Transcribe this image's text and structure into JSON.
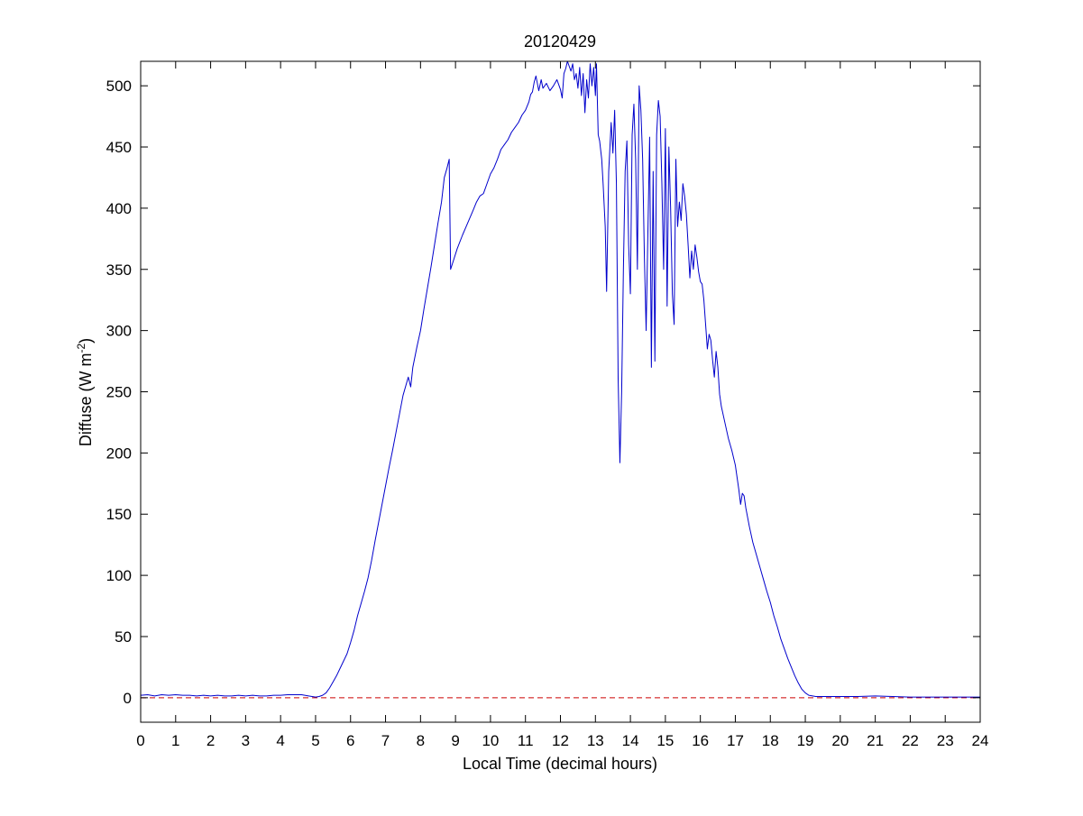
{
  "chart_data": {
    "type": "line",
    "title": "20120429",
    "xlabel": "Local Time (decimal hours)",
    "ylabel": "Diffuse (W m",
    "ylabel_superscript": "-2",
    "ylabel_suffix": ")",
    "xlim": [
      0,
      24
    ],
    "ylim": [
      -20,
      520
    ],
    "xticks": [
      0,
      1,
      2,
      3,
      4,
      5,
      6,
      7,
      8,
      9,
      10,
      11,
      12,
      13,
      14,
      15,
      16,
      17,
      18,
      19,
      20,
      21,
      22,
      23,
      24
    ],
    "yticks": [
      0,
      50,
      100,
      150,
      200,
      250,
      300,
      350,
      400,
      450,
      500
    ],
    "grid": false,
    "colors": {
      "series": "#0000cc",
      "reference": "#cc0000"
    },
    "series": [
      {
        "points": [
          [
            0,
            2
          ],
          [
            0.2,
            2.5
          ],
          [
            0.4,
            1.5
          ],
          [
            0.6,
            2.5
          ],
          [
            0.8,
            2
          ],
          [
            1,
            2.5
          ],
          [
            1.2,
            2
          ],
          [
            1.4,
            2
          ],
          [
            1.6,
            1.5
          ],
          [
            1.8,
            2
          ],
          [
            2,
            1.5
          ],
          [
            2.2,
            2
          ],
          [
            2.4,
            1.5
          ],
          [
            2.6,
            1.5
          ],
          [
            2.8,
            2
          ],
          [
            3,
            1.5
          ],
          [
            3.2,
            2
          ],
          [
            3.4,
            1.5
          ],
          [
            3.6,
            1.5
          ],
          [
            3.8,
            2
          ],
          [
            4,
            2
          ],
          [
            4.2,
            2.5
          ],
          [
            4.4,
            2.5
          ],
          [
            4.6,
            2.5
          ],
          [
            4.8,
            1.5
          ],
          [
            5,
            0.5
          ],
          [
            5.1,
            1
          ],
          [
            5.2,
            2
          ],
          [
            5.3,
            4
          ],
          [
            5.4,
            8
          ],
          [
            5.5,
            13
          ],
          [
            5.6,
            18
          ],
          [
            5.7,
            24
          ],
          [
            5.8,
            30
          ],
          [
            5.9,
            36
          ],
          [
            6,
            45
          ],
          [
            6.1,
            55
          ],
          [
            6.2,
            67
          ],
          [
            6.3,
            77
          ],
          [
            6.4,
            87
          ],
          [
            6.5,
            98
          ],
          [
            6.6,
            112
          ],
          [
            6.7,
            128
          ],
          [
            6.8,
            143
          ],
          [
            6.9,
            158
          ],
          [
            7,
            173
          ],
          [
            7.1,
            188
          ],
          [
            7.2,
            202
          ],
          [
            7.3,
            217
          ],
          [
            7.4,
            232
          ],
          [
            7.5,
            247
          ],
          [
            7.6,
            257
          ],
          [
            7.65,
            262
          ],
          [
            7.72,
            254
          ],
          [
            7.78,
            270
          ],
          [
            7.9,
            287
          ],
          [
            8,
            300
          ],
          [
            8.1,
            318
          ],
          [
            8.2,
            335
          ],
          [
            8.3,
            352
          ],
          [
            8.4,
            370
          ],
          [
            8.5,
            388
          ],
          [
            8.6,
            405
          ],
          [
            8.68,
            425
          ],
          [
            8.75,
            432
          ],
          [
            8.82,
            440
          ],
          [
            8.86,
            350
          ],
          [
            8.95,
            358
          ],
          [
            9.05,
            367
          ],
          [
            9.2,
            378
          ],
          [
            9.35,
            388
          ],
          [
            9.5,
            398
          ],
          [
            9.6,
            405
          ],
          [
            9.7,
            410
          ],
          [
            9.8,
            412
          ],
          [
            9.9,
            420
          ],
          [
            10,
            428
          ],
          [
            10.1,
            433
          ],
          [
            10.2,
            440
          ],
          [
            10.3,
            448
          ],
          [
            10.4,
            452
          ],
          [
            10.5,
            456
          ],
          [
            10.6,
            462
          ],
          [
            10.7,
            466
          ],
          [
            10.8,
            470
          ],
          [
            10.9,
            476
          ],
          [
            11,
            480
          ],
          [
            11.1,
            487
          ],
          [
            11.15,
            493
          ],
          [
            11.2,
            495
          ],
          [
            11.25,
            503
          ],
          [
            11.3,
            508
          ],
          [
            11.38,
            496
          ],
          [
            11.45,
            505
          ],
          [
            11.5,
            498
          ],
          [
            11.6,
            502
          ],
          [
            11.7,
            496
          ],
          [
            11.8,
            500
          ],
          [
            11.9,
            505
          ],
          [
            12,
            497
          ],
          [
            12.05,
            490
          ],
          [
            12.1,
            510
          ],
          [
            12.15,
            514
          ],
          [
            12.2,
            520
          ],
          [
            12.3,
            512
          ],
          [
            12.35,
            518
          ],
          [
            12.4,
            505
          ],
          [
            12.45,
            510
          ],
          [
            12.5,
            498
          ],
          [
            12.55,
            515
          ],
          [
            12.6,
            492
          ],
          [
            12.65,
            510
          ],
          [
            12.7,
            478
          ],
          [
            12.75,
            505
          ],
          [
            12.8,
            490
          ],
          [
            12.85,
            518
          ],
          [
            12.9,
            500
          ],
          [
            12.95,
            515
          ],
          [
            13,
            492
          ],
          [
            13.03,
            518
          ],
          [
            13.08,
            460
          ],
          [
            13.12,
            455
          ],
          [
            13.18,
            440
          ],
          [
            13.22,
            420
          ],
          [
            13.28,
            385
          ],
          [
            13.32,
            332
          ],
          [
            13.38,
            430
          ],
          [
            13.45,
            470
          ],
          [
            13.5,
            445
          ],
          [
            13.55,
            480
          ],
          [
            13.6,
            420
          ],
          [
            13.65,
            260
          ],
          [
            13.7,
            192
          ],
          [
            13.75,
            250
          ],
          [
            13.8,
            350
          ],
          [
            13.85,
            430
          ],
          [
            13.9,
            455
          ],
          [
            13.95,
            370
          ],
          [
            14,
            330
          ],
          [
            14.05,
            460
          ],
          [
            14.1,
            485
          ],
          [
            14.15,
            440
          ],
          [
            14.2,
            350
          ],
          [
            14.25,
            500
          ],
          [
            14.3,
            480
          ],
          [
            14.35,
            440
          ],
          [
            14.4,
            360
          ],
          [
            14.45,
            300
          ],
          [
            14.5,
            380
          ],
          [
            14.55,
            458
          ],
          [
            14.6,
            270
          ],
          [
            14.65,
            430
          ],
          [
            14.7,
            275
          ],
          [
            14.75,
            460
          ],
          [
            14.8,
            488
          ],
          [
            14.85,
            475
          ],
          [
            14.9,
            420
          ],
          [
            14.95,
            350
          ],
          [
            15,
            465
          ],
          [
            15.05,
            320
          ],
          [
            15.1,
            450
          ],
          [
            15.15,
            400
          ],
          [
            15.2,
            330
          ],
          [
            15.25,
            305
          ],
          [
            15.3,
            440
          ],
          [
            15.35,
            385
          ],
          [
            15.4,
            405
          ],
          [
            15.45,
            390
          ],
          [
            15.5,
            420
          ],
          [
            15.55,
            410
          ],
          [
            15.6,
            395
          ],
          [
            15.65,
            370
          ],
          [
            15.7,
            343
          ],
          [
            15.75,
            365
          ],
          [
            15.8,
            350
          ],
          [
            15.85,
            370
          ],
          [
            15.9,
            360
          ],
          [
            15.95,
            348
          ],
          [
            16,
            340
          ],
          [
            16.05,
            338
          ],
          [
            16.1,
            325
          ],
          [
            16.15,
            305
          ],
          [
            16.2,
            285
          ],
          [
            16.25,
            297
          ],
          [
            16.3,
            292
          ],
          [
            16.35,
            276
          ],
          [
            16.4,
            262
          ],
          [
            16.45,
            283
          ],
          [
            16.5,
            270
          ],
          [
            16.55,
            248
          ],
          [
            16.6,
            238
          ],
          [
            16.7,
            225
          ],
          [
            16.8,
            212
          ],
          [
            16.9,
            202
          ],
          [
            17,
            190
          ],
          [
            17.05,
            180
          ],
          [
            17.1,
            170
          ],
          [
            17.15,
            158
          ],
          [
            17.2,
            167
          ],
          [
            17.25,
            165
          ],
          [
            17.3,
            155
          ],
          [
            17.4,
            140
          ],
          [
            17.5,
            127
          ],
          [
            17.6,
            117
          ],
          [
            17.7,
            107
          ],
          [
            17.8,
            97
          ],
          [
            17.9,
            87
          ],
          [
            18,
            78
          ],
          [
            18.1,
            67
          ],
          [
            18.2,
            58
          ],
          [
            18.3,
            48
          ],
          [
            18.4,
            40
          ],
          [
            18.5,
            32
          ],
          [
            18.6,
            25
          ],
          [
            18.7,
            18
          ],
          [
            18.8,
            12
          ],
          [
            18.9,
            7
          ],
          [
            19,
            4
          ],
          [
            19.1,
            2
          ],
          [
            19.3,
            1
          ],
          [
            19.5,
            1
          ],
          [
            19.8,
            1
          ],
          [
            20,
            1
          ],
          [
            20.5,
            1
          ],
          [
            21,
            1.5
          ],
          [
            21.5,
            1
          ],
          [
            22,
            0.5
          ],
          [
            22.5,
            0.5
          ],
          [
            23,
            0.5
          ],
          [
            23.5,
            0.5
          ],
          [
            24,
            0.5
          ]
        ]
      }
    ],
    "reference_line": {
      "y": 0
    }
  }
}
